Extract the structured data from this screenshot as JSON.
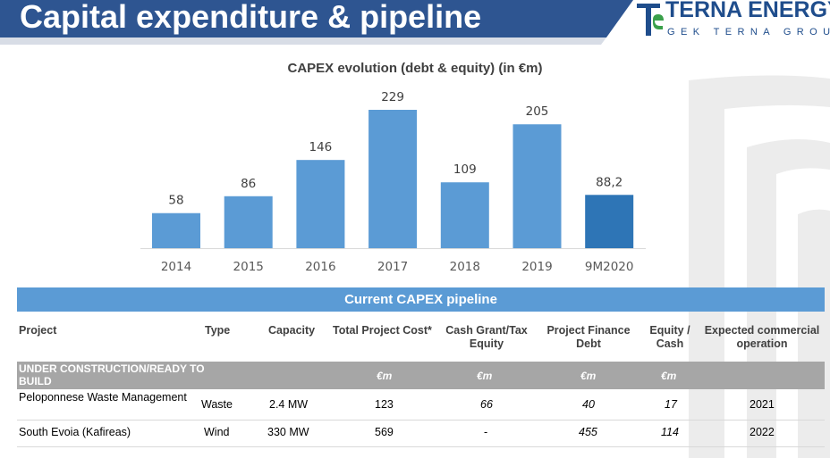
{
  "header": {
    "title": "Capital expenditure & pipeline",
    "logo_name": "TERNA ENERGY",
    "logo_sub": "GEK TERNA GROUP"
  },
  "colors": {
    "bar": "#5b9bd5",
    "bar_highlight": "#2e75b6",
    "title_band": "#2e5591",
    "table_band": "#5b9bd5",
    "section_row": "#a6a6a6"
  },
  "chart_data": {
    "type": "bar",
    "title": "CAPEX evolution (debt & equity) (in €m)",
    "categories": [
      "2014",
      "2015",
      "2016",
      "2017",
      "2018",
      "2019",
      "9M2020"
    ],
    "values": [
      58,
      86,
      146,
      229,
      109,
      205,
      88.2
    ],
    "data_labels": [
      "58",
      "86",
      "146",
      "229",
      "109",
      "205",
      "88,2"
    ],
    "highlight_index": 6,
    "xlabel": "",
    "ylabel": "",
    "ylim": [
      0,
      229
    ],
    "grid": false,
    "legend": "none"
  },
  "pipeline": {
    "title": "Current CAPEX pipeline",
    "columns": [
      "Project",
      "Type",
      "Capacity",
      "Total Project Cost*",
      "Cash Grant/Tax Equity",
      "Project Finance Debt",
      "Equity / Cash",
      "Expected commercial operation"
    ],
    "section": {
      "label": "UNDER CONSTRUCTION/READY TO BUILD",
      "units": [
        "€m",
        "€m",
        "€m",
        "€m"
      ]
    },
    "rows": [
      {
        "project": "Peloponnese Waste Management",
        "type": "Waste",
        "capacity": "2.4 MW",
        "total_cost": "123",
        "cash_grant": "66",
        "pf_debt": "40",
        "equity": "17",
        "cod": "2021"
      },
      {
        "project": "South Evoia (Kafireas)",
        "type": "Wind",
        "capacity": "330 MW",
        "total_cost": "569",
        "cash_grant": "-",
        "pf_debt": "455",
        "equity": "114",
        "cod": "2022"
      }
    ]
  }
}
